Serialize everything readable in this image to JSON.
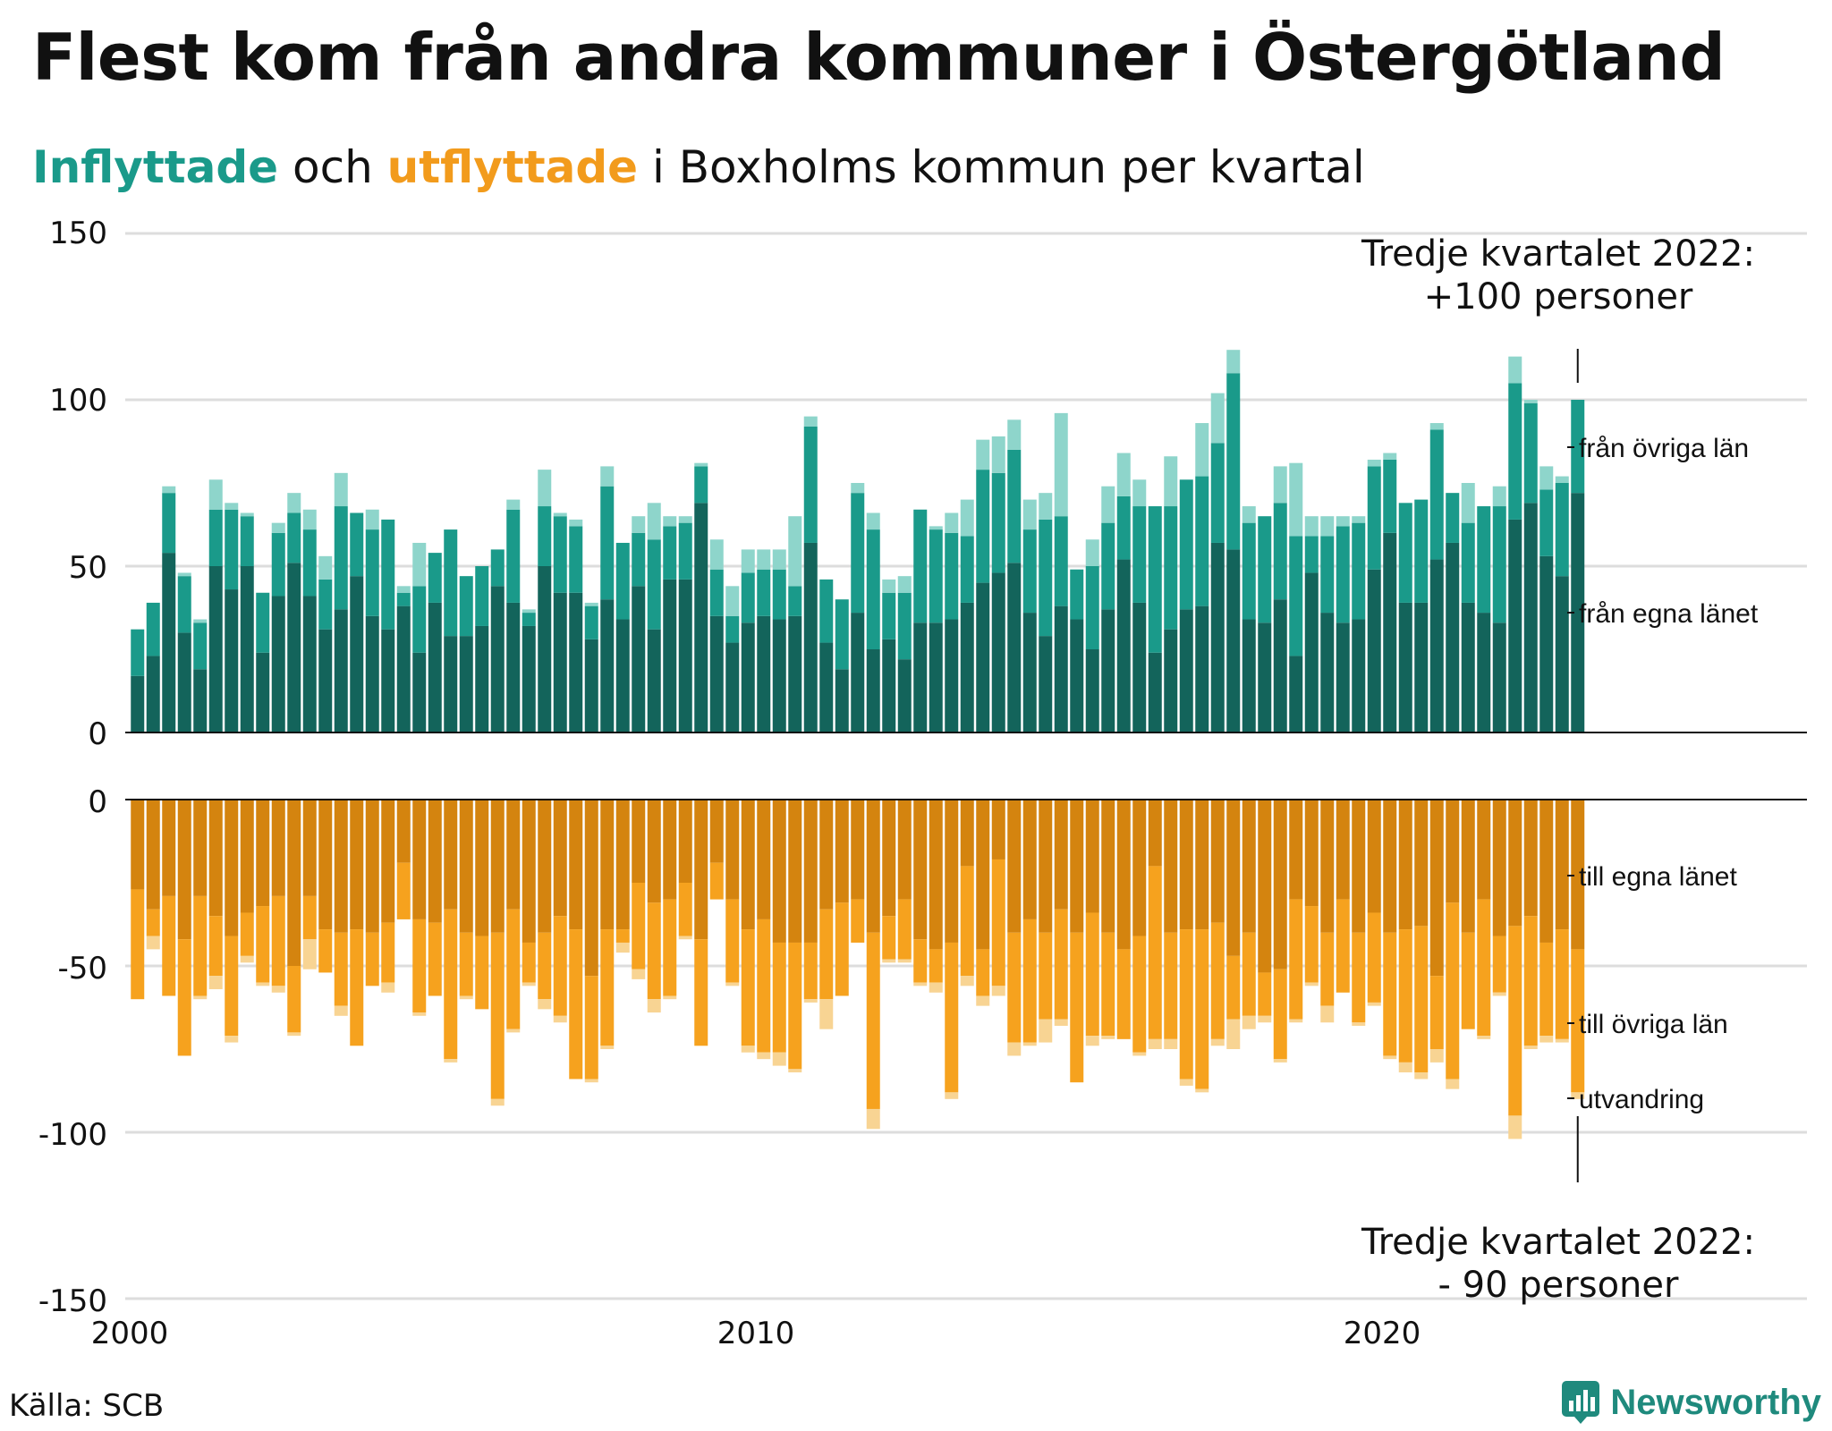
{
  "title": "Flest kom från andra kommuner i Östergötland",
  "subtitle": {
    "part1": "Inflyttade",
    "part2": " och ",
    "part3": "utflyttade",
    "part4": " i Boxholms kommun per kvartal"
  },
  "source": "Källa: SCB",
  "brand": "Newsworthy",
  "colors": {
    "in_own": "#13645b",
    "in_other": "#1a9a8a",
    "in_immig": "#8ed5cb",
    "out_own": "#d4840f",
    "out_other": "#f6a21e",
    "out_emig": "#f8d493",
    "grid": "#dddddd"
  },
  "chart_data": [
    {
      "type": "bar",
      "stacked": true,
      "title": "Inflyttade",
      "x_start": 2000,
      "period": "quarter",
      "ylim": [
        0,
        150
      ],
      "yticks": [
        0,
        50,
        100,
        150
      ],
      "xticks": [
        2000,
        2010,
        2020
      ],
      "series": [
        {
          "name": "från egna länet",
          "values": [
            17,
            23,
            54,
            30,
            19,
            50,
            43,
            50,
            24,
            41,
            51,
            41,
            31,
            37,
            47,
            35,
            31,
            38,
            24,
            39,
            29,
            29,
            32,
            44,
            39,
            32,
            50,
            42,
            42,
            28,
            40,
            34,
            44,
            31,
            46,
            46,
            69,
            35,
            27,
            33,
            35,
            34,
            35,
            57,
            27,
            19,
            36,
            25,
            28,
            22,
            33,
            33,
            34,
            39,
            45,
            48,
            51,
            36,
            29,
            38,
            34,
            25,
            37,
            52,
            39,
            24,
            31,
            37,
            38,
            57,
            55,
            34,
            33,
            40,
            23,
            48,
            36,
            33,
            34,
            49,
            60,
            39,
            39,
            52,
            57,
            39,
            36,
            33,
            64,
            69,
            53,
            47,
            72
          ]
        },
        {
          "name": "från övriga län",
          "values": [
            14,
            16,
            18,
            17,
            14,
            17,
            24,
            15,
            18,
            19,
            15,
            20,
            15,
            31,
            19,
            26,
            33,
            4,
            20,
            15,
            32,
            18,
            18,
            11,
            28,
            4,
            18,
            23,
            20,
            10,
            34,
            23,
            16,
            27,
            16,
            17,
            11,
            14,
            8,
            15,
            14,
            15,
            9,
            35,
            19,
            21,
            36,
            36,
            14,
            20,
            34,
            28,
            26,
            20,
            34,
            30,
            34,
            25,
            35,
            27,
            15,
            25,
            26,
            19,
            29,
            44,
            37,
            39,
            39,
            30,
            53,
            29,
            32,
            29,
            36,
            11,
            23,
            29,
            29,
            31,
            22,
            30,
            31,
            39,
            15,
            24,
            32,
            35,
            41,
            30,
            20,
            28,
            28
          ]
        },
        {
          "name": "utvandring",
          "values": [
            0,
            0,
            2,
            1,
            1,
            9,
            2,
            1,
            0,
            3,
            6,
            6,
            7,
            10,
            0,
            6,
            0,
            2,
            13,
            0,
            0,
            0,
            0,
            0,
            3,
            1,
            11,
            1,
            2,
            1,
            6,
            0,
            5,
            11,
            3,
            2,
            1,
            9,
            9,
            7,
            6,
            6,
            21,
            3,
            0,
            0,
            3,
            5,
            4,
            5,
            0,
            1,
            6,
            11,
            9,
            11,
            9,
            9,
            8,
            31,
            0,
            8,
            11,
            13,
            8,
            0,
            15,
            0,
            16,
            15,
            7,
            5,
            0,
            11,
            22,
            6,
            6,
            3,
            2,
            2,
            2,
            0,
            0,
            2,
            0,
            12,
            0,
            6,
            8,
            1,
            7,
            2,
            0
          ]
        }
      ]
    },
    {
      "type": "bar",
      "stacked": true,
      "title": "Utflyttade",
      "x_start": 2000,
      "period": "quarter",
      "ylim": [
        -150,
        0
      ],
      "yticks": [
        0,
        -50,
        -100,
        -150
      ],
      "xticks": [
        2000,
        2010,
        2020
      ],
      "series": [
        {
          "name": "till egna länet",
          "values": [
            -27,
            -33,
            -29,
            -42,
            -29,
            -35,
            -41,
            -34,
            -32,
            -29,
            -50,
            -29,
            -39,
            -40,
            -39,
            -40,
            -37,
            -19,
            -36,
            -37,
            -33,
            -40,
            -41,
            -40,
            -33,
            -43,
            -40,
            -35,
            -39,
            -53,
            -39,
            -39,
            -25,
            -31,
            -30,
            -25,
            -42,
            -19,
            -30,
            -39,
            -36,
            -43,
            -43,
            -43,
            -33,
            -31,
            -30,
            -40,
            -35,
            -30,
            -42,
            -45,
            -43,
            -20,
            -45,
            -18,
            -40,
            -36,
            -40,
            -33,
            -40,
            -34,
            -40,
            -45,
            -41,
            -20,
            -40,
            -39,
            -39,
            -37,
            -47,
            -40,
            -52,
            -51,
            -30,
            -32,
            -40,
            -30,
            -40,
            -34,
            -40,
            -39,
            -38,
            -53,
            -31,
            -40,
            -30,
            -41,
            -38,
            -35,
            -43,
            -39,
            -45
          ]
        },
        {
          "name": "till övriga län",
          "values": [
            -33,
            -8,
            -30,
            -35,
            -30,
            -18,
            -30,
            -13,
            -23,
            -27,
            -20,
            -13,
            -13,
            -22,
            -35,
            -16,
            -18,
            -17,
            -28,
            -22,
            -45,
            -19,
            -22,
            -50,
            -36,
            -12,
            -20,
            -30,
            -45,
            -31,
            -35,
            -4,
            -26,
            -29,
            -29,
            -16,
            -32,
            -11,
            -25,
            -35,
            -40,
            -33,
            -38,
            -17,
            -27,
            -28,
            -13,
            -53,
            -13,
            -18,
            -13,
            -10,
            -45,
            -33,
            -14,
            -38,
            -33,
            -37,
            -26,
            -33,
            -45,
            -37,
            -31,
            -27,
            -35,
            -52,
            -32,
            -45,
            -48,
            -35,
            -19,
            -25,
            -13,
            -27,
            -36,
            -23,
            -22,
            -28,
            -27,
            -27,
            -37,
            -40,
            -44,
            -22,
            -53,
            -29,
            -41,
            -17,
            -57,
            -39,
            -28,
            -33,
            -43
          ]
        },
        {
          "name": "utvandring",
          "values": [
            0,
            -4,
            0,
            0,
            -1,
            -4,
            -2,
            -2,
            -1,
            -2,
            -1,
            -9,
            0,
            -3,
            0,
            0,
            -3,
            0,
            -1,
            0,
            -1,
            -1,
            0,
            -2,
            -1,
            -1,
            -3,
            -2,
            0,
            -1,
            -1,
            -3,
            -3,
            -4,
            -1,
            -1,
            0,
            0,
            -1,
            -2,
            -2,
            -4,
            -1,
            -1,
            -9,
            0,
            0,
            -6,
            -1,
            -1,
            -1,
            -3,
            -2,
            -3,
            -3,
            -3,
            -4,
            -1,
            -7,
            -2,
            0,
            -3,
            -1,
            0,
            -1,
            -3,
            -3,
            -2,
            -1,
            -2,
            -9,
            -4,
            -2,
            -1,
            -1,
            -1,
            -5,
            0,
            -1,
            -1,
            -1,
            -3,
            -2,
            -4,
            -3,
            0,
            -1,
            -1,
            -7,
            -1,
            -2,
            -1,
            -2
          ]
        }
      ]
    }
  ],
  "labels": {
    "top_series": [
      "från övriga län",
      "från egna länet"
    ],
    "bottom_series": [
      "till egna länet",
      "till övriga län",
      "utvandring"
    ],
    "annotation_top_line1": "Tredje kvartalet 2022:",
    "annotation_top_line2": "+100 personer",
    "annotation_bottom_line1": "Tredje kvartalet 2022:",
    "annotation_bottom_line2": "- 90 personer",
    "yticks_top": [
      "0",
      "50",
      "100",
      "150"
    ],
    "yticks_bottom": [
      "0",
      "-50",
      "-100",
      "-150"
    ],
    "xticks": [
      "2000",
      "2010",
      "2020"
    ]
  }
}
